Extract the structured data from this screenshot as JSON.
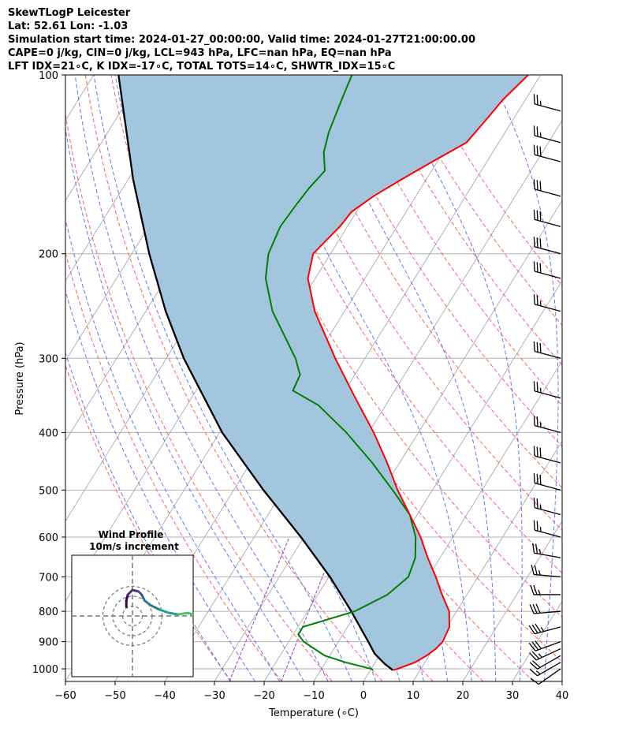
{
  "header": {
    "line1": "SkewTLogP Leicester",
    "line2": "Lat: 52.61   Lon: -1.03",
    "line3": "Simulation start time: 2024-01-27_00:00:00, Valid time: 2024-01-27T21:00:00.00",
    "line4": "CAPE=0 j/kg, CIN=0 j/kg, LCL=943 hPa, LFC=nan hPa, EQ=nan hPa",
    "line5": "LFT IDX=21∘C, K IDX=-17∘C, TOTAL TOTS=14∘C, SHWTR_IDX=15∘C"
  },
  "colors": {
    "temperature": "#ff0000",
    "dewpoint": "#008000",
    "parcel": "#000000",
    "cin_fill": "#a3c6df",
    "dry_adiabat": "#ff6060",
    "moist_adiabat": "#4060ff",
    "mixing_ratio": "#9040c0",
    "isotherm": "#aaaaaa"
  },
  "chart_data": {
    "type": "skew-t",
    "xlabel": "Temperature (∘C)",
    "ylabel": "Pressure (hPa)",
    "xlim": [
      -60,
      40
    ],
    "ylim": [
      1050,
      100
    ],
    "x_ticks": [
      "−60",
      "−50",
      "−40",
      "−30",
      "−20",
      "−10",
      "0",
      "10",
      "20",
      "30",
      "40"
    ],
    "x_tick_values": [
      -60,
      -50,
      -40,
      -30,
      -20,
      -10,
      0,
      10,
      20,
      30,
      40
    ],
    "y_ticks": [
      "1000",
      "900",
      "800",
      "700",
      "600",
      "500",
      "400",
      "300",
      "200",
      "100"
    ],
    "y_tick_values": [
      1000,
      900,
      800,
      700,
      600,
      500,
      400,
      300,
      200,
      100
    ],
    "log_y": true,
    "grid": true,
    "temperature_profile": [
      {
        "p": 1005,
        "t": 4.5
      },
      {
        "p": 1000,
        "t": 5.3
      },
      {
        "p": 975,
        "t": 8.0
      },
      {
        "p": 950,
        "t": 9.5
      },
      {
        "p": 925,
        "t": 10.5
      },
      {
        "p": 900,
        "t": 11.0
      },
      {
        "p": 850,
        "t": 10.5
      },
      {
        "p": 800,
        "t": 8.5
      },
      {
        "p": 750,
        "t": 5.0
      },
      {
        "p": 700,
        "t": 1.5
      },
      {
        "p": 650,
        "t": -2.5
      },
      {
        "p": 600,
        "t": -6.5
      },
      {
        "p": 550,
        "t": -11.5
      },
      {
        "p": 500,
        "t": -17.0
      },
      {
        "p": 450,
        "t": -22.5
      },
      {
        "p": 400,
        "t": -29.0
      },
      {
        "p": 350,
        "t": -37.0
      },
      {
        "p": 300,
        "t": -46.0
      },
      {
        "p": 250,
        "t": -56.0
      },
      {
        "p": 220,
        "t": -61.5
      },
      {
        "p": 200,
        "t": -63.5
      },
      {
        "p": 180,
        "t": -61.5
      },
      {
        "p": 170,
        "t": -61.0
      },
      {
        "p": 160,
        "t": -58.5
      },
      {
        "p": 150,
        "t": -55.0
      },
      {
        "p": 140,
        "t": -51.0
      },
      {
        "p": 130,
        "t": -46.5
      },
      {
        "p": 120,
        "t": -45.5
      },
      {
        "p": 110,
        "t": -44.5
      },
      {
        "p": 100,
        "t": -42.5
      }
    ],
    "dewpoint_profile": [
      {
        "p": 1005,
        "t": 0.5
      },
      {
        "p": 1000,
        "t": 0.0
      },
      {
        "p": 975,
        "t": -6.0
      },
      {
        "p": 950,
        "t": -11.0
      },
      {
        "p": 900,
        "t": -17.0
      },
      {
        "p": 875,
        "t": -19.0
      },
      {
        "p": 850,
        "t": -19.0
      },
      {
        "p": 800,
        "t": -10.5
      },
      {
        "p": 750,
        "t": -6.0
      },
      {
        "p": 700,
        "t": -4.0
      },
      {
        "p": 650,
        "t": -5.0
      },
      {
        "p": 600,
        "t": -7.5
      },
      {
        "p": 550,
        "t": -11.5
      },
      {
        "p": 500,
        "t": -18.0
      },
      {
        "p": 450,
        "t": -25.5
      },
      {
        "p": 400,
        "t": -34.5
      },
      {
        "p": 360,
        "t": -43.5
      },
      {
        "p": 340,
        "t": -50.5
      },
      {
        "p": 320,
        "t": -51.0
      },
      {
        "p": 300,
        "t": -54.0
      },
      {
        "p": 250,
        "t": -64.5
      },
      {
        "p": 220,
        "t": -70.0
      },
      {
        "p": 200,
        "t": -72.5
      },
      {
        "p": 180,
        "t": -73.5
      },
      {
        "p": 165,
        "t": -73.0
      },
      {
        "p": 155,
        "t": -72.5
      },
      {
        "p": 145,
        "t": -71.5
      },
      {
        "p": 135,
        "t": -74.0
      },
      {
        "p": 125,
        "t": -75.5
      },
      {
        "p": 110,
        "t": -77.0
      },
      {
        "p": 100,
        "t": -78.0
      }
    ],
    "parcel_profile": [
      {
        "p": 1005,
        "t": 4.5
      },
      {
        "p": 980,
        "t": 2.0
      },
      {
        "p": 943,
        "t": -1.2
      },
      {
        "p": 900,
        "t": -4.0
      },
      {
        "p": 850,
        "t": -7.5
      },
      {
        "p": 800,
        "t": -11.2
      },
      {
        "p": 700,
        "t": -19.8
      },
      {
        "p": 600,
        "t": -30.6
      },
      {
        "p": 500,
        "t": -44.0
      },
      {
        "p": 400,
        "t": -59.5
      },
      {
        "p": 300,
        "t": -76.5
      },
      {
        "p": 250,
        "t": -86.0
      },
      {
        "p": 200,
        "t": -96.5
      },
      {
        "p": 150,
        "t": -109.0
      },
      {
        "p": 100,
        "t": -125.0
      }
    ],
    "winds": [
      {
        "p": 1000,
        "speed_kt": 10,
        "dir_deg": 235
      },
      {
        "p": 975,
        "speed_kt": 15,
        "dir_deg": 240
      },
      {
        "p": 950,
        "speed_kt": 20,
        "dir_deg": 240
      },
      {
        "p": 925,
        "speed_kt": 25,
        "dir_deg": 245
      },
      {
        "p": 900,
        "speed_kt": 30,
        "dir_deg": 250
      },
      {
        "p": 850,
        "speed_kt": 35,
        "dir_deg": 255
      },
      {
        "p": 800,
        "speed_kt": 30,
        "dir_deg": 265
      },
      {
        "p": 750,
        "speed_kt": 25,
        "dir_deg": 270
      },
      {
        "p": 700,
        "speed_kt": 25,
        "dir_deg": 275
      },
      {
        "p": 650,
        "speed_kt": 25,
        "dir_deg": 280
      },
      {
        "p": 600,
        "speed_kt": 25,
        "dir_deg": 285
      },
      {
        "p": 550,
        "speed_kt": 25,
        "dir_deg": 285
      },
      {
        "p": 500,
        "speed_kt": 30,
        "dir_deg": 285
      },
      {
        "p": 450,
        "speed_kt": 30,
        "dir_deg": 285
      },
      {
        "p": 400,
        "speed_kt": 25,
        "dir_deg": 285
      },
      {
        "p": 350,
        "speed_kt": 25,
        "dir_deg": 285
      },
      {
        "p": 300,
        "speed_kt": 30,
        "dir_deg": 285
      },
      {
        "p": 250,
        "speed_kt": 25,
        "dir_deg": 285
      },
      {
        "p": 220,
        "speed_kt": 30,
        "dir_deg": 285
      },
      {
        "p": 200,
        "speed_kt": 30,
        "dir_deg": 285
      },
      {
        "p": 180,
        "speed_kt": 30,
        "dir_deg": 285
      },
      {
        "p": 160,
        "speed_kt": 30,
        "dir_deg": 285
      },
      {
        "p": 140,
        "speed_kt": 30,
        "dir_deg": 285
      },
      {
        "p": 130,
        "speed_kt": 25,
        "dir_deg": 285
      },
      {
        "p": 115,
        "speed_kt": 25,
        "dir_deg": 285
      }
    ],
    "hodograph": {
      "title": "Wind Profile",
      "subtitle": "10m/s increment",
      "rings_ms": [
        10,
        20,
        30
      ],
      "points_ms": [
        {
          "u": -2.0,
          "v": 3.0
        },
        {
          "u": -2.0,
          "v": 5.0
        },
        {
          "u": -1.5,
          "v": 7.0
        },
        {
          "u": 0.0,
          "v": 8.5
        },
        {
          "u": 2.0,
          "v": 8.0
        },
        {
          "u": 3.0,
          "v": 7.0
        },
        {
          "u": 4.0,
          "v": 5.0
        },
        {
          "u": 6.0,
          "v": 3.5
        },
        {
          "u": 9.0,
          "v": 2.0
        },
        {
          "u": 12.0,
          "v": 1.0
        },
        {
          "u": 15.0,
          "v": 0.5
        },
        {
          "u": 18.0,
          "v": 1.0
        },
        {
          "u": 20.0,
          "v": 0.5
        },
        {
          "u": 21.0,
          "v": -1.0
        },
        {
          "u": 20.0,
          "v": -3.0
        },
        {
          "u": 22.0,
          "v": -4.5
        },
        {
          "u": 24.0,
          "v": -3.5
        }
      ]
    }
  }
}
